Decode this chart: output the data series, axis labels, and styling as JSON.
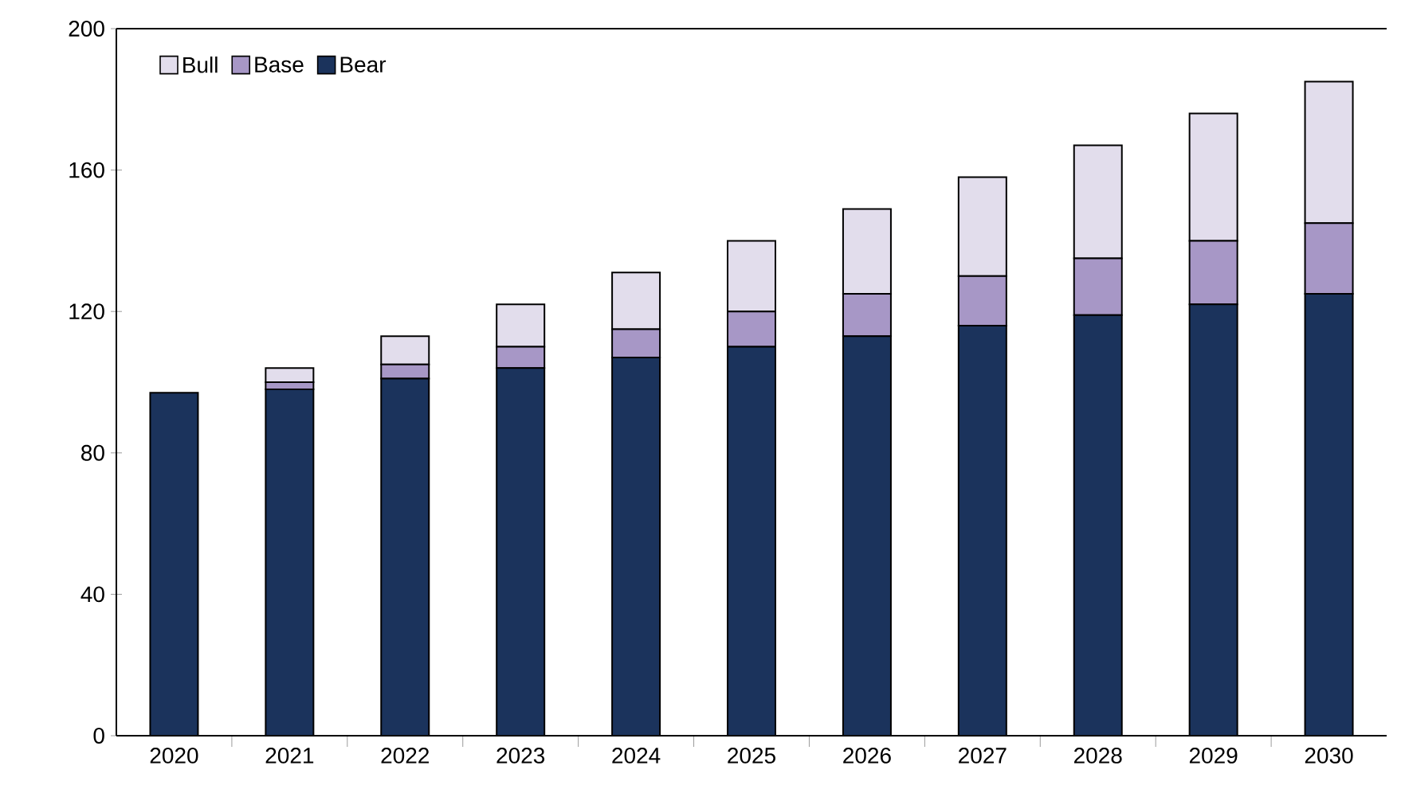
{
  "chart_data": {
    "type": "bar",
    "stacked": true,
    "categories": [
      "2020",
      "2021",
      "2022",
      "2023",
      "2024",
      "2025",
      "2026",
      "2027",
      "2028",
      "2029",
      "2030"
    ],
    "series": [
      {
        "name": "Bear",
        "color": "#1b335c",
        "values": [
          97,
          98,
          101,
          104,
          107,
          110,
          113,
          116,
          119,
          122,
          125
        ]
      },
      {
        "name": "Base",
        "color": "#a797c6",
        "values": [
          0,
          2,
          4,
          6,
          8,
          10,
          12,
          14,
          16,
          18,
          20
        ]
      },
      {
        "name": "Bull",
        "color": "#e2ddec",
        "values": [
          0,
          4,
          8,
          12,
          16,
          20,
          24,
          28,
          32,
          36,
          40
        ]
      }
    ],
    "ylim": [
      0,
      200
    ],
    "yticks": [
      0,
      40,
      80,
      120,
      160,
      200
    ],
    "grid": false,
    "legend": "top left"
  }
}
